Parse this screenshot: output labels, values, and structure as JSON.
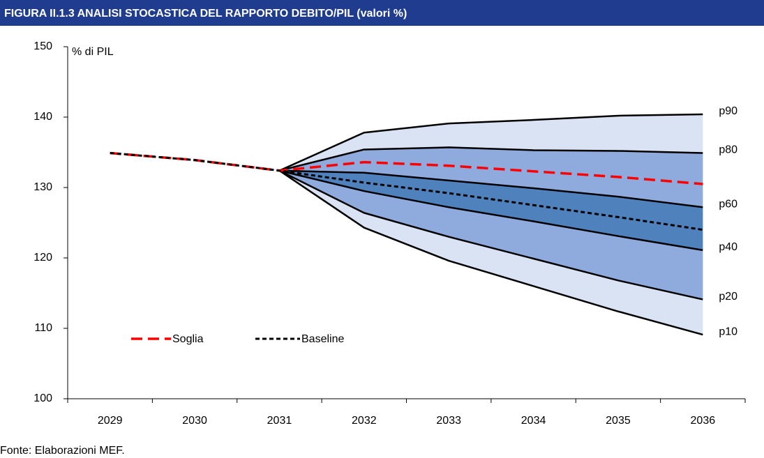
{
  "chart_data": {
    "type": "fan",
    "title": "FIGURA II.1.3 ANALISI STOCASTICA DEL RAPPORTO DEBITO/PIL (valori %)",
    "y_label": "% di PIL",
    "source": "Fonte: Elaborazioni MEF.",
    "categories": [
      "2029",
      "2030",
      "2031",
      "2032",
      "2033",
      "2034",
      "2035",
      "2036"
    ],
    "ylim": [
      100,
      150
    ],
    "yticks": [
      100,
      110,
      120,
      130,
      140,
      150
    ],
    "grid": false,
    "percentiles": [
      {
        "name": "p10",
        "values": [
          null,
          null,
          132.4,
          124.3,
          119.6,
          116.0,
          112.4,
          109.1
        ]
      },
      {
        "name": "p20",
        "values": [
          null,
          null,
          132.4,
          126.4,
          123.0,
          119.9,
          116.8,
          114.1
        ]
      },
      {
        "name": "p40",
        "values": [
          null,
          null,
          132.4,
          129.5,
          127.2,
          125.2,
          123.1,
          121.1
        ]
      },
      {
        "name": "p60",
        "values": [
          null,
          null,
          132.4,
          132.1,
          131.0,
          129.9,
          128.7,
          127.2
        ]
      },
      {
        "name": "p80",
        "values": [
          null,
          null,
          132.4,
          135.4,
          135.7,
          135.3,
          135.2,
          134.9
        ]
      },
      {
        "name": "p90",
        "values": [
          null,
          null,
          132.4,
          137.8,
          139.1,
          139.6,
          140.2,
          140.4
        ]
      }
    ],
    "percentile_color": "#000000",
    "band_colors": [
      "#dae3f3",
      "#8faadc",
      "#4f81bd"
    ],
    "series": [
      {
        "name": "Soglia",
        "color": "#ff0000",
        "values": [
          134.9,
          133.9,
          132.4,
          133.6,
          133.1,
          132.3,
          131.5,
          130.5
        ]
      },
      {
        "name": "Baseline",
        "color": "#000000",
        "values": [
          134.9,
          133.9,
          132.4,
          130.7,
          129.2,
          127.5,
          125.8,
          124.0
        ]
      }
    ]
  }
}
